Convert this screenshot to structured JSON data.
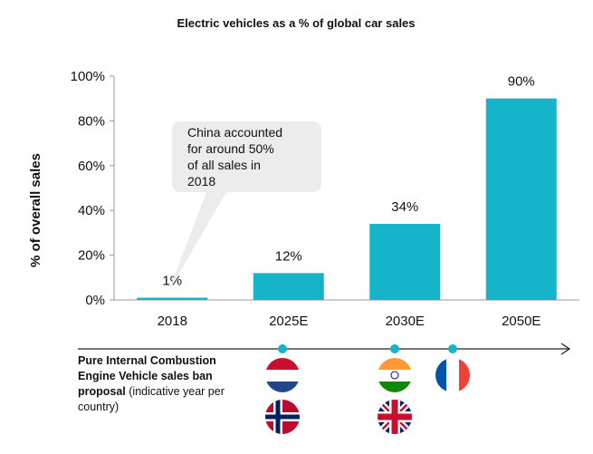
{
  "chart_data": {
    "type": "bar",
    "title": "Electric vehicles as a % of global car sales",
    "ylabel": "% of overall sales",
    "xlabel": "",
    "categories": [
      "2018",
      "2025E",
      "2030E",
      "2050E"
    ],
    "values": [
      1,
      12,
      34,
      90
    ],
    "data_labels": [
      "1%",
      "12%",
      "34%",
      "90%"
    ],
    "ylim": [
      0,
      100
    ],
    "yticks": [
      0,
      20,
      40,
      60,
      80,
      100
    ],
    "ytick_labels": [
      "0%",
      "20%",
      "40%",
      "60%",
      "80%",
      "100%"
    ],
    "bar_color": "#16b4c8",
    "grid": false,
    "annotation": {
      "lines": [
        "China accounted",
        "for around 50%",
        "of all sales in",
        "2018"
      ],
      "points_to": "2018"
    }
  },
  "timeline": {
    "label_bold": "Pure Internal Combustion Engine Vehicle sales ban proposal",
    "label_regular": " (indicative year per country)",
    "dot_color": "#16b4c8",
    "markers": [
      {
        "anchor": "2025E",
        "flags": [
          {
            "country": "Netherlands",
            "icon": "netherlands-flag-icon"
          },
          {
            "country": "Norway",
            "icon": "norway-flag-icon"
          }
        ]
      },
      {
        "anchor": "2030E",
        "flags": [
          {
            "country": "India",
            "icon": "india-flag-icon"
          },
          {
            "country": "United Kingdom",
            "icon": "uk-flag-icon"
          }
        ]
      },
      {
        "anchor": "between 2030E and 2050E",
        "flags": [
          {
            "country": "France",
            "icon": "france-flag-icon"
          }
        ]
      }
    ]
  }
}
